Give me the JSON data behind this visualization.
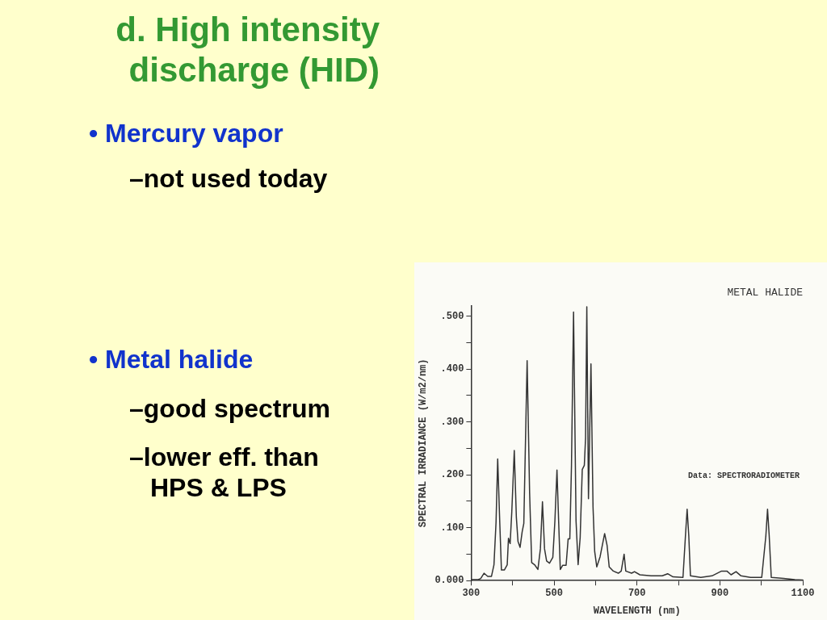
{
  "chart_data": {
    "type": "line",
    "title": "METAL HALIDE",
    "xlabel": "WAVELENGTH (nm)",
    "ylabel": "SPECTRAL IRRADIANCE (W/m2/nm)",
    "annotations": [
      "d. High intensity discharge (HID)",
      "• Mercury vapor",
      "–not used today",
      "• Metal halide",
      "–good spectrum",
      "–lower eff. than HPS & LPS",
      "Data: SPECTRORADIOMETER"
    ],
    "xlim": [
      300,
      1100
    ],
    "xticks": [
      300,
      {
        "value": 400,
        "label": null
      },
      500,
      {
        "value": 600,
        "label": null
      },
      700,
      {
        "value": 800,
        "label": null
      },
      900,
      {
        "value": 1000,
        "label": null
      },
      1100
    ],
    "ylim": [
      0,
      0.52
    ],
    "yticks": [
      {
        "value": 0,
        "label": "0.000"
      },
      {
        "value": 0.05,
        "label": null
      },
      {
        "value": 0.1,
        "label": ".100"
      },
      {
        "value": 0.15,
        "label": null
      },
      {
        "value": 0.2,
        "label": ".200"
      },
      {
        "value": 0.25,
        "label": null
      },
      {
        "value": 0.3,
        "label": ".300"
      },
      {
        "value": 0.35,
        "label": null
      },
      {
        "value": 0.4,
        "label": ".400"
      },
      {
        "value": 0.45,
        "label": null
      },
      {
        "value": 0.5,
        "label": ".500"
      }
    ],
    "series": [
      {
        "color": "#333333",
        "x": [
          300,
          317,
          323,
          331,
          340,
          349,
          355,
          360,
          364,
          369,
          373,
          380,
          387,
          390,
          394,
          398,
          404,
          409,
          413,
          418,
          423,
          427,
          435,
          441,
          446,
          453,
          461,
          467,
          472,
          477,
          482,
          489,
          497,
          502,
          507,
          511,
          515,
          521,
          529,
          534,
          538,
          542,
          547,
          553,
          558,
          563,
          568,
          573,
          576,
          579,
          583,
          589,
          594,
          598,
          603,
          611,
          622,
          628,
          633,
          643,
          655,
          662,
          669,
          673,
          687,
          694,
          707,
          734,
          761,
          774,
          787,
          811,
          817,
          821,
          825,
          829,
          854,
          881,
          904,
          917,
          927,
          939,
          951,
          974,
          1001,
          1011,
          1015,
          1019,
          1024,
          1054,
          1081,
          1100
        ],
        "values": [
          0.002,
          0.002,
          0.004,
          0.014,
          0.008,
          0.008,
          0.03,
          0.11,
          0.23,
          0.11,
          0.02,
          0.02,
          0.03,
          0.08,
          0.07,
          0.13,
          0.246,
          0.12,
          0.074,
          0.063,
          0.092,
          0.108,
          0.416,
          0.166,
          0.034,
          0.03,
          0.021,
          0.06,
          0.149,
          0.06,
          0.037,
          0.033,
          0.044,
          0.113,
          0.209,
          0.113,
          0.021,
          0.029,
          0.029,
          0.079,
          0.079,
          0.218,
          0.508,
          0.113,
          0.03,
          0.082,
          0.21,
          0.218,
          0.27,
          0.518,
          0.155,
          0.41,
          0.139,
          0.055,
          0.026,
          0.045,
          0.089,
          0.066,
          0.026,
          0.018,
          0.014,
          0.018,
          0.05,
          0.018,
          0.014,
          0.017,
          0.011,
          0.009,
          0.009,
          0.013,
          0.007,
          0.006,
          0.085,
          0.135,
          0.085,
          0.009,
          0.006,
          0.009,
          0.018,
          0.018,
          0.011,
          0.017,
          0.009,
          0.006,
          0.006,
          0.085,
          0.135,
          0.085,
          0.006,
          0.004,
          0.002,
          0.001
        ]
      }
    ]
  }
}
